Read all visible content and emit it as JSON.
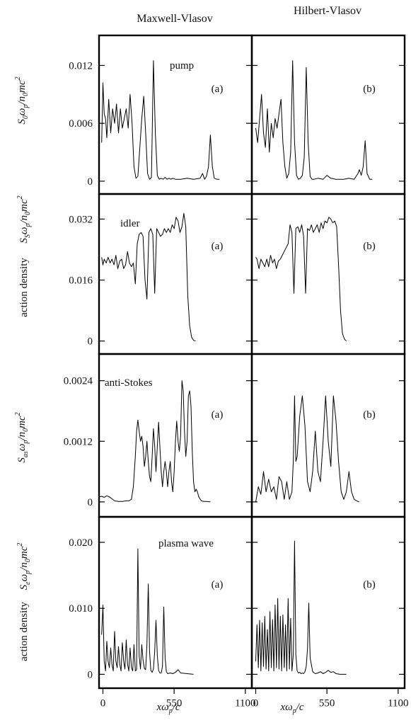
{
  "columns": [
    "Maxwell-Vlasov",
    "Hilbert-Vlasov"
  ],
  "xaxis": {
    "label": "xωp/c",
    "ticks": [
      0,
      550,
      1100
    ],
    "range": [
      -30,
      1150
    ]
  },
  "shared_ylabel": "action density",
  "rows": [
    {
      "key": "pump",
      "ylabel": "S0ωp/n0mc²",
      "ticks": [
        "0",
        "0.006",
        "0.012"
      ],
      "tick_values": [
        0,
        0.006,
        0.012
      ],
      "ylim": [
        -0.0003,
        0.0135
      ],
      "tag": "pump",
      "tag_col": 0
    },
    {
      "key": "idler",
      "ylabel": "Ssωp/n0mc²",
      "ticks": [
        "0",
        "0.016",
        "0.032"
      ],
      "tick_values": [
        0,
        0.016,
        0.032
      ],
      "ylim": [
        -0.0008,
        0.0345
      ],
      "tag": "idler",
      "tag_col": 0
    },
    {
      "key": "anti-stokes",
      "ylabel": "Sasωp/n0mc²",
      "ticks": [
        "0",
        "0.0012",
        "0.0024"
      ],
      "tick_values": [
        0,
        0.0012,
        0.0024
      ],
      "ylim": [
        -0.0001,
        0.00262
      ],
      "tag": "anti-Stokes",
      "tag_col": 0
    },
    {
      "key": "plasma-wave",
      "ylabel": "Seωp/n0mc²",
      "ticks": [
        "0",
        "0.010",
        "0.020"
      ],
      "tick_values": [
        0,
        0.01,
        0.02
      ],
      "ylim": [
        -0.0006,
        0.0215
      ],
      "tag": "plasma wave",
      "tag_col": 0
    }
  ],
  "panel_letters": [
    "(a)",
    "(b)"
  ],
  "chart_data": {
    "type": "line",
    "title": "",
    "xlabel": "xωp/c",
    "ylabel": "action density",
    "grid": false,
    "panels": [
      {
        "row": "pump",
        "column": "Maxwell-Vlasov",
        "label": "(a)",
        "x": [
          -10,
          0,
          10,
          20,
          30,
          45,
          60,
          75,
          90,
          105,
          120,
          135,
          150,
          165,
          180,
          195,
          210,
          225,
          240,
          255,
          270,
          285,
          300,
          315,
          330,
          345,
          360,
          375,
          390,
          405,
          420,
          435,
          450,
          465,
          480,
          495,
          510,
          525,
          540,
          560,
          600,
          650,
          700,
          750,
          770,
          785,
          800,
          815,
          830,
          845,
          860,
          880,
          900
        ],
        "y": [
          0.004,
          0.0102,
          0.007,
          0.0065,
          0.0045,
          0.0085,
          0.005,
          0.0075,
          0.006,
          0.008,
          0.005,
          0.0075,
          0.0055,
          0.0065,
          0.0075,
          0.0055,
          0.009,
          0.006,
          0.0015,
          0.0003,
          0.0005,
          0.0035,
          0.0065,
          0.0088,
          0.005,
          0.0008,
          0.0002,
          0.0004,
          0.0125,
          0.005,
          0.0006,
          0.0002,
          0.0003,
          0.0002,
          0.0004,
          0.0002,
          0.0003,
          0.0002,
          0.0003,
          0.0002,
          0.0002,
          0.0003,
          0.0002,
          0.0003,
          0.0008,
          0.0002,
          0.0005,
          0.0015,
          0.0048,
          0.0015,
          0.0003,
          0.0002,
          0.0002
        ]
      },
      {
        "row": "pump",
        "column": "Hilbert-Vlasov",
        "label": "(b)",
        "x": [
          0,
          15,
          30,
          45,
          60,
          75,
          90,
          105,
          120,
          135,
          150,
          165,
          180,
          195,
          210,
          225,
          240,
          255,
          270,
          285,
          300,
          315,
          330,
          345,
          360,
          375,
          390,
          405,
          420,
          435,
          450,
          480,
          520,
          550,
          580,
          620,
          680,
          720,
          760,
          790,
          800,
          815,
          830,
          845,
          860,
          880,
          900
        ],
        "y": [
          0.0055,
          0.004,
          0.0065,
          0.009,
          0.005,
          0.0035,
          0.0075,
          0.003,
          0.006,
          0.0045,
          0.0065,
          0.0055,
          0.007,
          0.0085,
          0.004,
          0.0015,
          0.0003,
          0.0008,
          0.003,
          0.0125,
          0.004,
          0.0006,
          0.0002,
          0.0003,
          0.0006,
          0.0025,
          0.0118,
          0.004,
          0.0005,
          0.0002,
          0.0002,
          0.0003,
          0.0002,
          0.0006,
          0.0003,
          0.0002,
          0.0002,
          0.0003,
          0.0002,
          0.0008,
          0.0012,
          0.0006,
          0.0015,
          0.0042,
          0.0008,
          0.0002,
          0.0002
        ]
      },
      {
        "row": "idler",
        "column": "Maxwell-Vlasov",
        "label": "(a)",
        "x": [
          -10,
          0,
          10,
          25,
          40,
          55,
          70,
          85,
          100,
          115,
          130,
          145,
          160,
          175,
          190,
          205,
          220,
          235,
          250,
          265,
          280,
          295,
          310,
          325,
          340,
          355,
          370,
          385,
          400,
          415,
          430,
          445,
          460,
          475,
          490,
          505,
          520,
          535,
          550,
          565,
          580,
          595,
          610,
          625,
          640,
          655,
          670,
          685,
          700,
          715
        ],
        "y": [
          0.022,
          0.02,
          0.0215,
          0.0205,
          0.022,
          0.0205,
          0.0215,
          0.02,
          0.0225,
          0.019,
          0.021,
          0.0215,
          0.019,
          0.02,
          0.0235,
          0.0205,
          0.0195,
          0.0205,
          0.015,
          0.0255,
          0.028,
          0.0285,
          0.0275,
          0.016,
          0.011,
          0.0285,
          0.0295,
          0.028,
          0.0125,
          0.0295,
          0.0285,
          0.0275,
          0.028,
          0.0295,
          0.0285,
          0.0295,
          0.0285,
          0.0305,
          0.0295,
          0.0325,
          0.0315,
          0.0285,
          0.03,
          0.0335,
          0.03,
          0.012,
          0.004,
          0.001,
          0.0002,
          0.0
        ]
      },
      {
        "row": "idler",
        "column": "Hilbert-Vlasov",
        "label": "(b)",
        "x": [
          0,
          10,
          25,
          40,
          55,
          70,
          85,
          100,
          115,
          130,
          145,
          160,
          175,
          190,
          205,
          220,
          235,
          250,
          265,
          280,
          295,
          310,
          325,
          340,
          355,
          370,
          385,
          400,
          415,
          430,
          445,
          460,
          475,
          490,
          505,
          520,
          535,
          550,
          565,
          580,
          595,
          610,
          625,
          640,
          655,
          670,
          685,
          700
        ],
        "y": [
          0.022,
          0.0215,
          0.019,
          0.0215,
          0.0205,
          0.0195,
          0.0215,
          0.0195,
          0.0225,
          0.0205,
          0.0215,
          0.019,
          0.021,
          0.0215,
          0.0225,
          0.0235,
          0.0245,
          0.0255,
          0.0305,
          0.0285,
          0.0125,
          0.0295,
          0.03,
          0.0285,
          0.0305,
          0.0275,
          0.0125,
          0.0295,
          0.029,
          0.0305,
          0.0285,
          0.0295,
          0.0305,
          0.0285,
          0.031,
          0.0295,
          0.0315,
          0.031,
          0.0325,
          0.032,
          0.031,
          0.0315,
          0.03,
          0.02,
          0.008,
          0.002,
          0.0005,
          0.0
        ]
      },
      {
        "row": "anti-stokes",
        "column": "Maxwell-Vlasov",
        "label": "(a)",
        "x": [
          -30,
          -10,
          10,
          30,
          50,
          70,
          90,
          120,
          150,
          180,
          200,
          220,
          235,
          250,
          260,
          270,
          280,
          290,
          300,
          310,
          320,
          330,
          340,
          350,
          360,
          370,
          380,
          390,
          400,
          410,
          420,
          430,
          440,
          450,
          460,
          470,
          480,
          490,
          500,
          510,
          520,
          530,
          540,
          550,
          560,
          570,
          580,
          590,
          600,
          610,
          620,
          630,
          640,
          650,
          660,
          670,
          680,
          690,
          700,
          710,
          720,
          730,
          740,
          760,
          780,
          800,
          830
        ],
        "y": [
          0.0001,
          0.00011,
          9e-05,
          0.00012,
          0.0001,
          6e-05,
          2e-05,
          1e-05,
          1e-05,
          2e-05,
          2e-05,
          5e-05,
          0.0003,
          0.0009,
          0.0014,
          0.00162,
          0.0014,
          0.0012,
          0.0013,
          0.0011,
          0.0007,
          0.0009,
          0.0012,
          0.0008,
          0.0005,
          0.0004,
          0.0009,
          0.00145,
          0.0011,
          0.0006,
          0.0011,
          0.00158,
          0.0011,
          0.0006,
          0.0003,
          0.0006,
          0.0008,
          0.0006,
          0.0003,
          0.0006,
          0.0008,
          0.0004,
          0.0002,
          0.0006,
          0.0012,
          0.0016,
          0.0012,
          0.001,
          0.0013,
          0.0024,
          0.0022,
          0.0014,
          0.0009,
          0.0012,
          0.0021,
          0.0022,
          0.0019,
          0.001,
          0.0004,
          0.0002,
          0.00025,
          0.0002,
          0.0001,
          2e-05,
          1e-05,
          1e-05,
          0.0
        ]
      },
      {
        "row": "anti-stokes",
        "column": "Hilbert-Vlasov",
        "label": "(b)",
        "x": [
          0,
          20,
          40,
          60,
          80,
          100,
          120,
          140,
          160,
          180,
          200,
          220,
          240,
          260,
          280,
          290,
          300,
          310,
          320,
          340,
          360,
          380,
          400,
          420,
          440,
          460,
          480,
          500,
          520,
          540,
          560,
          580,
          600,
          620,
          640,
          660,
          680,
          700,
          720,
          740,
          760,
          780,
          800
        ],
        "y": [
          0.0,
          0.0003,
          0.00015,
          0.0006,
          0.0002,
          0.00045,
          0.0002,
          0.0003,
          5e-05,
          0.0005,
          0.0004,
          5e-05,
          0.0004,
          5e-05,
          0.0002,
          0.0008,
          0.0021,
          0.0008,
          0.0009,
          0.0017,
          0.0021,
          0.0015,
          0.0004,
          0.0002,
          0.0006,
          0.0014,
          0.0006,
          0.0004,
          0.0012,
          0.0021,
          0.0012,
          0.0007,
          0.0021,
          0.0016,
          0.0008,
          0.0002,
          5e-05,
          0.0002,
          0.0006,
          0.0002,
          5e-05,
          2e-05,
          0.0
        ]
      },
      {
        "row": "plasma-wave",
        "column": "Maxwell-Vlasov",
        "label": "(a)",
        "x": [
          -10,
          0,
          10,
          20,
          30,
          40,
          50,
          60,
          70,
          80,
          90,
          100,
          110,
          120,
          130,
          140,
          150,
          160,
          170,
          180,
          190,
          200,
          210,
          220,
          230,
          240,
          250,
          260,
          270,
          280,
          290,
          300,
          310,
          320,
          330,
          340,
          350,
          360,
          370,
          380,
          390,
          400,
          410,
          420,
          430,
          440,
          450,
          460,
          470,
          480,
          490,
          500,
          520,
          540,
          560,
          580,
          600,
          650,
          700
        ],
        "y": [
          0.006,
          0.0105,
          0.002,
          0.0005,
          0.005,
          0.002,
          0.001,
          0.004,
          0.0015,
          0.0005,
          0.0065,
          0.002,
          0.001,
          0.0042,
          0.0015,
          0.0005,
          0.0048,
          0.002,
          0.0008,
          0.0052,
          0.0015,
          0.0005,
          0.004,
          0.001,
          0.0005,
          0.0045,
          0.0005,
          0.0007,
          0.019,
          0.0028,
          0.0008,
          0.0045,
          0.0022,
          0.0009,
          0.0007,
          0.0045,
          0.0137,
          0.0035,
          0.0006,
          0.0003,
          0.0008,
          0.0035,
          0.0082,
          0.0028,
          0.0006,
          0.0002,
          0.0002,
          0.0012,
          0.0102,
          0.0025,
          0.0004,
          0.0001,
          0.0002,
          0.0001,
          0.0003,
          0.0007,
          0.0002,
          0.0001,
          0.0
        ]
      },
      {
        "row": "plasma-wave",
        "column": "Hilbert-Vlasov",
        "label": "(b)",
        "x": [
          0,
          10,
          20,
          30,
          40,
          50,
          60,
          70,
          80,
          90,
          100,
          110,
          120,
          130,
          140,
          150,
          160,
          170,
          180,
          190,
          200,
          210,
          220,
          230,
          240,
          250,
          260,
          270,
          280,
          290,
          300,
          310,
          320,
          330,
          340,
          350,
          360,
          370,
          380,
          390,
          400,
          410,
          420,
          440,
          460,
          480,
          500,
          520,
          540,
          560,
          580,
          600,
          620,
          650,
          700
        ],
        "y": [
          0.002,
          0.0075,
          0.001,
          0.0082,
          0.0005,
          0.0078,
          0.0012,
          0.0088,
          0.0008,
          0.0068,
          0.0005,
          0.0095,
          0.001,
          0.0083,
          0.0005,
          0.0105,
          0.001,
          0.0115,
          0.0008,
          0.0088,
          0.0005,
          0.009,
          0.001,
          0.0075,
          0.0005,
          0.0115,
          0.0008,
          0.0085,
          0.0005,
          0.003,
          0.0202,
          0.003,
          0.0005,
          0.0002,
          0.0003,
          0.0001,
          0.0002,
          0.0001,
          0.0004,
          0.0012,
          0.0039,
          0.0108,
          0.0025,
          0.0004,
          0.0001,
          0.0002,
          0.0004,
          0.0001,
          0.0003,
          0.0006,
          0.0003,
          0.0004,
          0.0001,
          0.0,
          0.0
        ]
      }
    ]
  }
}
